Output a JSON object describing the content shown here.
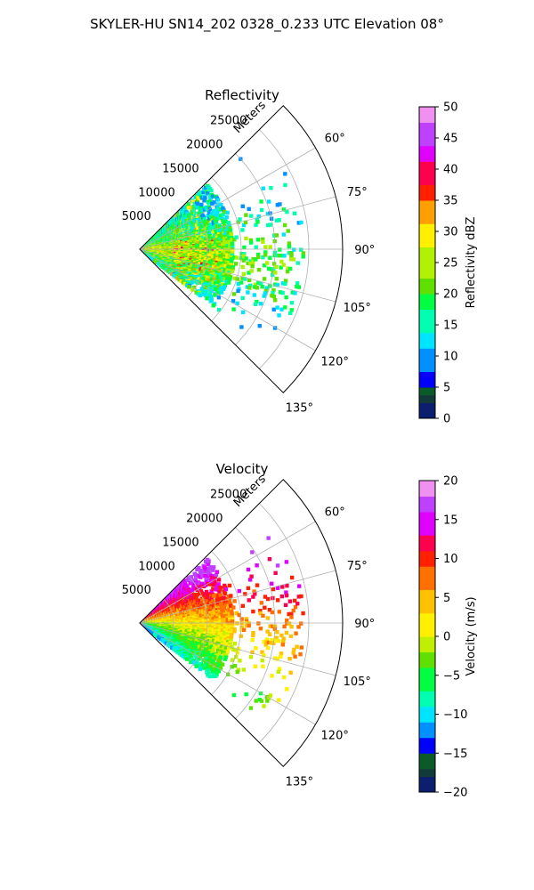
{
  "suptitle": "SKYLER-HU  SN14_202  0328_0.233 UTC Elevation 08°",
  "chart_data": [
    {
      "type": "polar-ppi",
      "title": "Reflectivity",
      "radial_label": "Meters",
      "range_ticks": [
        5000,
        10000,
        15000,
        20000,
        25000
      ],
      "range_tick_labels": [
        "5000",
        "10000",
        "15000",
        "20000",
        "25000"
      ],
      "azimuth_ticks": [
        60,
        75,
        90,
        105,
        120,
        135
      ],
      "azimuth_tick_labels": [
        "60°",
        "75°",
        "90°",
        "105°",
        "120°",
        "135°"
      ],
      "azimuth_range": [
        45,
        135
      ],
      "range_max": 30000,
      "grid": true,
      "colorbar": {
        "label": "Reflectivity dBZ",
        "min": 0,
        "max": 50,
        "ticks": [
          0,
          5,
          10,
          15,
          20,
          25,
          30,
          35,
          40,
          45,
          50
        ],
        "tick_labels": [
          "0",
          "5",
          "10",
          "15",
          "20",
          "25",
          "30",
          "35",
          "40",
          "45",
          "50"
        ],
        "stops": [
          {
            "v": 0,
            "c": "#0b1f6e"
          },
          {
            "v": 2,
            "c": "#123a3a"
          },
          {
            "v": 4,
            "c": "#0a5a2a"
          },
          {
            "v": 5,
            "c": "#0000ff"
          },
          {
            "v": 8,
            "c": "#0090ff"
          },
          {
            "v": 11,
            "c": "#00e5ff"
          },
          {
            "v": 14,
            "c": "#00ffb0"
          },
          {
            "v": 17,
            "c": "#00ff40"
          },
          {
            "v": 20,
            "c": "#60e000"
          },
          {
            "v": 23,
            "c": "#b0f000"
          },
          {
            "v": 27,
            "c": "#fff000"
          },
          {
            "v": 31,
            "c": "#ffa000"
          },
          {
            "v": 35,
            "c": "#ff2000"
          },
          {
            "v": 38,
            "c": "#ff0050"
          },
          {
            "v": 41,
            "c": "#e000ff"
          },
          {
            "v": 44,
            "c": "#c040ff"
          },
          {
            "v": 47,
            "c": "#f090f0"
          },
          {
            "v": 50,
            "c": "#fff0ff"
          }
        ]
      }
    },
    {
      "type": "polar-ppi",
      "title": "Velocity",
      "radial_label": "Meters",
      "range_ticks": [
        5000,
        10000,
        15000,
        20000,
        25000
      ],
      "range_tick_labels": [
        "5000",
        "10000",
        "15000",
        "20000",
        "25000"
      ],
      "azimuth_ticks": [
        60,
        75,
        90,
        105,
        120,
        135
      ],
      "azimuth_tick_labels": [
        "60°",
        "75°",
        "90°",
        "105°",
        "120°",
        "135°"
      ],
      "azimuth_range": [
        45,
        135
      ],
      "range_max": 30000,
      "grid": true,
      "colorbar": {
        "label": "Velocity (m/s)",
        "min": -20,
        "max": 20,
        "ticks": [
          -20,
          -15,
          -10,
          -5,
          0,
          5,
          10,
          15,
          20
        ],
        "tick_labels": [
          "−20",
          "−15",
          "−10",
          "−5",
          "0",
          "5",
          "10",
          "15",
          "20"
        ],
        "stops": [
          {
            "v": -20,
            "c": "#0b1f6e"
          },
          {
            "v": -18,
            "c": "#123a3a"
          },
          {
            "v": -16.5,
            "c": "#0a5a2a"
          },
          {
            "v": -15,
            "c": "#0000ff"
          },
          {
            "v": -13,
            "c": "#0090ff"
          },
          {
            "v": -11,
            "c": "#00e5ff"
          },
          {
            "v": -9,
            "c": "#00ffb0"
          },
          {
            "v": -7,
            "c": "#00ff40"
          },
          {
            "v": -4,
            "c": "#60e000"
          },
          {
            "v": -1.5,
            "c": "#c0f000"
          },
          {
            "v": 0.5,
            "c": "#fff000"
          },
          {
            "v": 3,
            "c": "#ffc000"
          },
          {
            "v": 6,
            "c": "#ff7000"
          },
          {
            "v": 9,
            "c": "#ff2000"
          },
          {
            "v": 11,
            "c": "#ff0050"
          },
          {
            "v": 13,
            "c": "#e000ff"
          },
          {
            "v": 16,
            "c": "#c040ff"
          },
          {
            "v": 18,
            "c": "#f090f0"
          },
          {
            "v": 20,
            "c": "#fff0ff"
          }
        ]
      }
    }
  ]
}
